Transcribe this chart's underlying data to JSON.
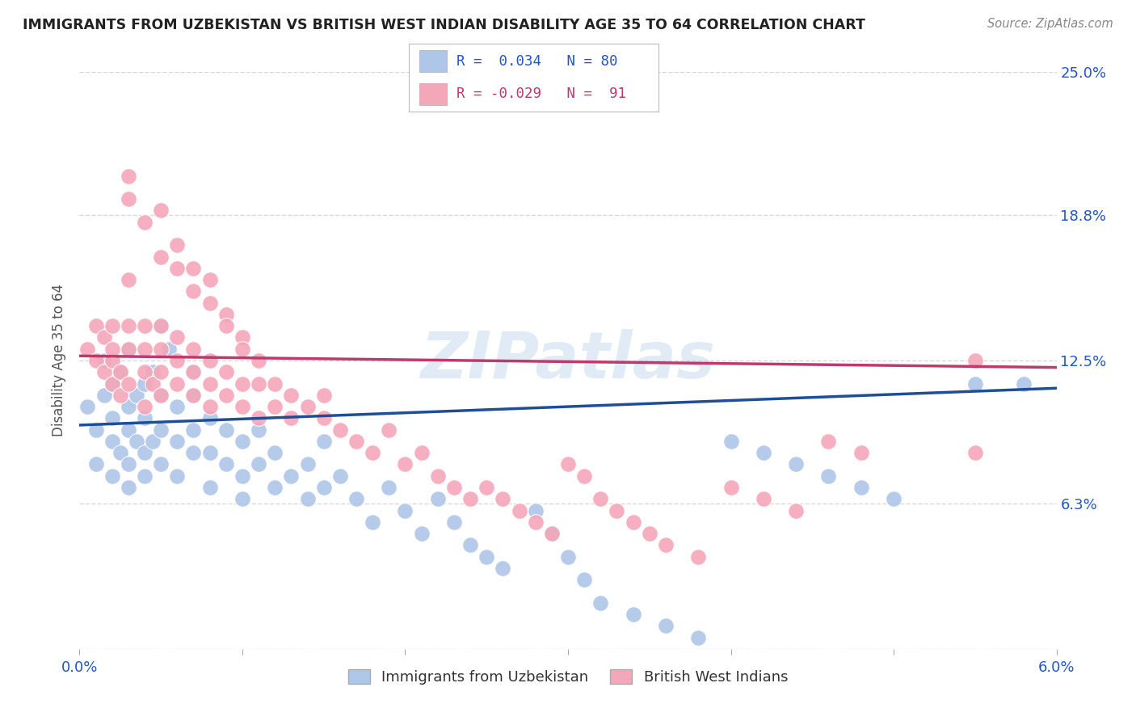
{
  "title": "IMMIGRANTS FROM UZBEKISTAN VS BRITISH WEST INDIAN DISABILITY AGE 35 TO 64 CORRELATION CHART",
  "source": "Source: ZipAtlas.com",
  "ylabel": "Disability Age 35 to 64",
  "xlim": [
    0.0,
    0.06
  ],
  "ylim": [
    0.0,
    0.25
  ],
  "ytick_positions": [
    0.0,
    0.063,
    0.125,
    0.188,
    0.25
  ],
  "yticklabels": [
    "",
    "6.3%",
    "12.5%",
    "18.8%",
    "25.0%"
  ],
  "blue_R": 0.034,
  "blue_N": 80,
  "pink_R": -0.029,
  "pink_N": 91,
  "blue_color": "#aec6e8",
  "pink_color": "#f4a7b9",
  "blue_line_color": "#1f4e96",
  "pink_line_color": "#c0396b",
  "blue_label": "Immigrants from Uzbekistan",
  "pink_label": "British West Indians",
  "background_color": "#ffffff",
  "grid_color": "#d8d8d8",
  "title_color": "#222222",
  "axis_label_color": "#2255cc",
  "watermark": "ZIPatlas",
  "blue_trend_x": [
    0.0,
    0.06
  ],
  "blue_trend_y": [
    0.097,
    0.113
  ],
  "pink_trend_x": [
    0.0,
    0.06
  ],
  "pink_trend_y": [
    0.127,
    0.122
  ],
  "blue_x": [
    0.0005,
    0.001,
    0.001,
    0.0015,
    0.0015,
    0.002,
    0.002,
    0.002,
    0.002,
    0.0025,
    0.0025,
    0.003,
    0.003,
    0.003,
    0.003,
    0.003,
    0.0035,
    0.0035,
    0.004,
    0.004,
    0.004,
    0.004,
    0.0045,
    0.0045,
    0.005,
    0.005,
    0.005,
    0.005,
    0.0055,
    0.006,
    0.006,
    0.006,
    0.007,
    0.007,
    0.007,
    0.007,
    0.008,
    0.008,
    0.008,
    0.009,
    0.009,
    0.01,
    0.01,
    0.01,
    0.011,
    0.011,
    0.012,
    0.012,
    0.013,
    0.014,
    0.014,
    0.015,
    0.015,
    0.016,
    0.017,
    0.018,
    0.019,
    0.02,
    0.021,
    0.022,
    0.023,
    0.024,
    0.025,
    0.026,
    0.028,
    0.029,
    0.03,
    0.031,
    0.032,
    0.034,
    0.036,
    0.038,
    0.04,
    0.042,
    0.044,
    0.046,
    0.048,
    0.05,
    0.055,
    0.058
  ],
  "blue_y": [
    0.105,
    0.08,
    0.095,
    0.11,
    0.125,
    0.09,
    0.1,
    0.115,
    0.075,
    0.085,
    0.12,
    0.07,
    0.08,
    0.095,
    0.105,
    0.13,
    0.09,
    0.11,
    0.075,
    0.085,
    0.1,
    0.115,
    0.09,
    0.12,
    0.08,
    0.095,
    0.11,
    0.14,
    0.13,
    0.075,
    0.09,
    0.105,
    0.085,
    0.095,
    0.11,
    0.12,
    0.07,
    0.085,
    0.1,
    0.08,
    0.095,
    0.065,
    0.075,
    0.09,
    0.08,
    0.095,
    0.07,
    0.085,
    0.075,
    0.065,
    0.08,
    0.07,
    0.09,
    0.075,
    0.065,
    0.055,
    0.07,
    0.06,
    0.05,
    0.065,
    0.055,
    0.045,
    0.04,
    0.035,
    0.06,
    0.05,
    0.04,
    0.03,
    0.02,
    0.015,
    0.01,
    0.005,
    0.09,
    0.085,
    0.08,
    0.075,
    0.07,
    0.065,
    0.115,
    0.115
  ],
  "pink_x": [
    0.0005,
    0.001,
    0.001,
    0.0015,
    0.0015,
    0.002,
    0.002,
    0.002,
    0.002,
    0.0025,
    0.0025,
    0.003,
    0.003,
    0.003,
    0.003,
    0.004,
    0.004,
    0.004,
    0.004,
    0.0045,
    0.005,
    0.005,
    0.005,
    0.005,
    0.006,
    0.006,
    0.006,
    0.007,
    0.007,
    0.007,
    0.008,
    0.008,
    0.008,
    0.009,
    0.009,
    0.01,
    0.01,
    0.011,
    0.011,
    0.012,
    0.012,
    0.013,
    0.013,
    0.014,
    0.015,
    0.015,
    0.016,
    0.017,
    0.018,
    0.019,
    0.02,
    0.021,
    0.022,
    0.023,
    0.024,
    0.025,
    0.026,
    0.027,
    0.028,
    0.029,
    0.03,
    0.031,
    0.032,
    0.033,
    0.034,
    0.035,
    0.036,
    0.038,
    0.04,
    0.042,
    0.044,
    0.046,
    0.048,
    0.003,
    0.003,
    0.004,
    0.005,
    0.005,
    0.006,
    0.006,
    0.007,
    0.007,
    0.008,
    0.008,
    0.009,
    0.009,
    0.01,
    0.01,
    0.011,
    0.055,
    0.055
  ],
  "pink_y": [
    0.13,
    0.125,
    0.14,
    0.12,
    0.135,
    0.115,
    0.125,
    0.13,
    0.14,
    0.12,
    0.11,
    0.115,
    0.13,
    0.14,
    0.16,
    0.12,
    0.13,
    0.14,
    0.105,
    0.115,
    0.12,
    0.13,
    0.14,
    0.11,
    0.115,
    0.125,
    0.135,
    0.12,
    0.13,
    0.11,
    0.115,
    0.125,
    0.105,
    0.12,
    0.11,
    0.115,
    0.105,
    0.1,
    0.115,
    0.105,
    0.115,
    0.1,
    0.11,
    0.105,
    0.1,
    0.11,
    0.095,
    0.09,
    0.085,
    0.095,
    0.08,
    0.085,
    0.075,
    0.07,
    0.065,
    0.07,
    0.065,
    0.06,
    0.055,
    0.05,
    0.08,
    0.075,
    0.065,
    0.06,
    0.055,
    0.05,
    0.045,
    0.04,
    0.07,
    0.065,
    0.06,
    0.09,
    0.085,
    0.205,
    0.195,
    0.185,
    0.19,
    0.17,
    0.175,
    0.165,
    0.165,
    0.155,
    0.16,
    0.15,
    0.145,
    0.14,
    0.135,
    0.13,
    0.125,
    0.125,
    0.085
  ]
}
